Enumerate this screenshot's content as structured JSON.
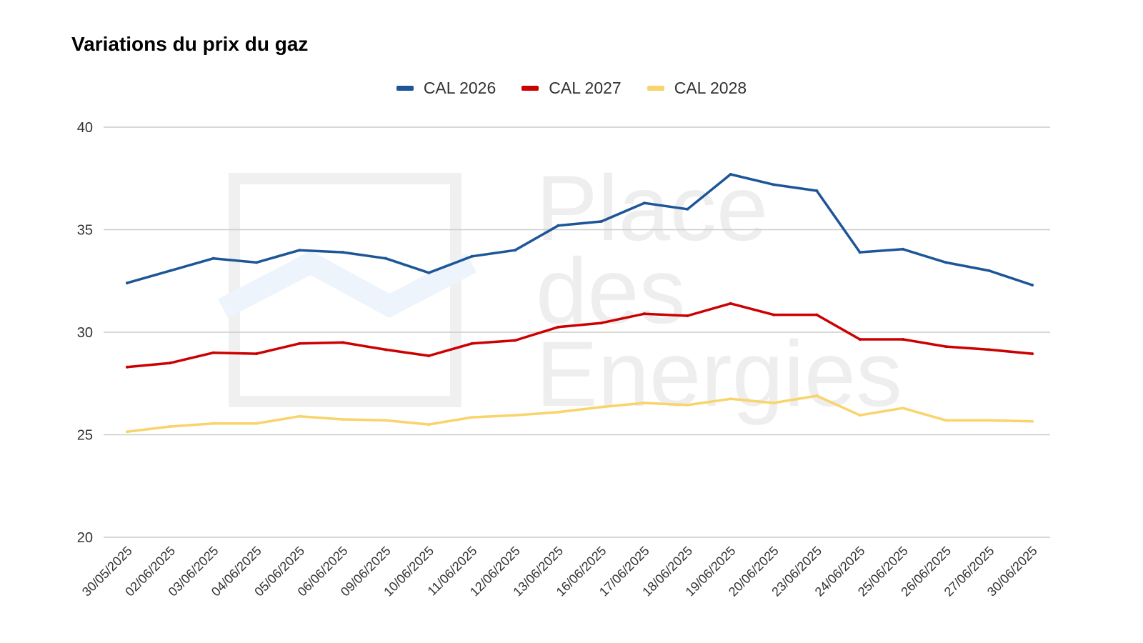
{
  "chart_data": {
    "type": "line",
    "title": "Variations du prix du gaz",
    "xlabel": "",
    "ylabel": "",
    "ylim": [
      20,
      40
    ],
    "yticks": [
      20,
      25,
      30,
      35,
      40
    ],
    "grid": true,
    "legend_position": "top-center",
    "categories": [
      "30/05/2025",
      "02/06/2025",
      "03/06/2025",
      "04/06/2025",
      "05/06/2025",
      "06/06/2025",
      "09/06/2025",
      "10/06/2025",
      "11/06/2025",
      "12/06/2025",
      "13/06/2025",
      "16/06/2025",
      "17/06/2025",
      "18/06/2025",
      "19/06/2025",
      "20/06/2025",
      "23/06/2025",
      "24/06/2025",
      "25/06/2025",
      "26/06/2025",
      "27/06/2025",
      "30/06/2025"
    ],
    "series": [
      {
        "name": "CAL 2026",
        "color": "#1c5598",
        "values": [
          32.4,
          33.0,
          33.6,
          33.4,
          34.0,
          33.9,
          33.6,
          32.9,
          33.7,
          34.0,
          35.2,
          35.4,
          36.3,
          36.0,
          37.7,
          37.2,
          36.9,
          33.9,
          34.05,
          33.4,
          33.0,
          32.3
        ]
      },
      {
        "name": "CAL 2027",
        "color": "#cc0000",
        "values": [
          28.3,
          28.5,
          29.0,
          28.95,
          29.45,
          29.5,
          29.15,
          28.85,
          29.45,
          29.6,
          30.25,
          30.45,
          30.9,
          30.8,
          31.4,
          30.85,
          30.85,
          29.65,
          29.65,
          29.3,
          29.15,
          28.95
        ]
      },
      {
        "name": "CAL 2028",
        "color": "#f9d36b",
        "values": [
          25.15,
          25.4,
          25.55,
          25.55,
          25.9,
          25.75,
          25.7,
          25.5,
          25.85,
          25.95,
          26.1,
          26.35,
          26.55,
          26.45,
          26.75,
          26.55,
          26.9,
          25.95,
          26.3,
          25.7,
          25.7,
          25.65
        ]
      }
    ]
  },
  "watermark": {
    "lines": [
      "Place",
      "des",
      "Energies"
    ],
    "color": "#eeeeee"
  }
}
